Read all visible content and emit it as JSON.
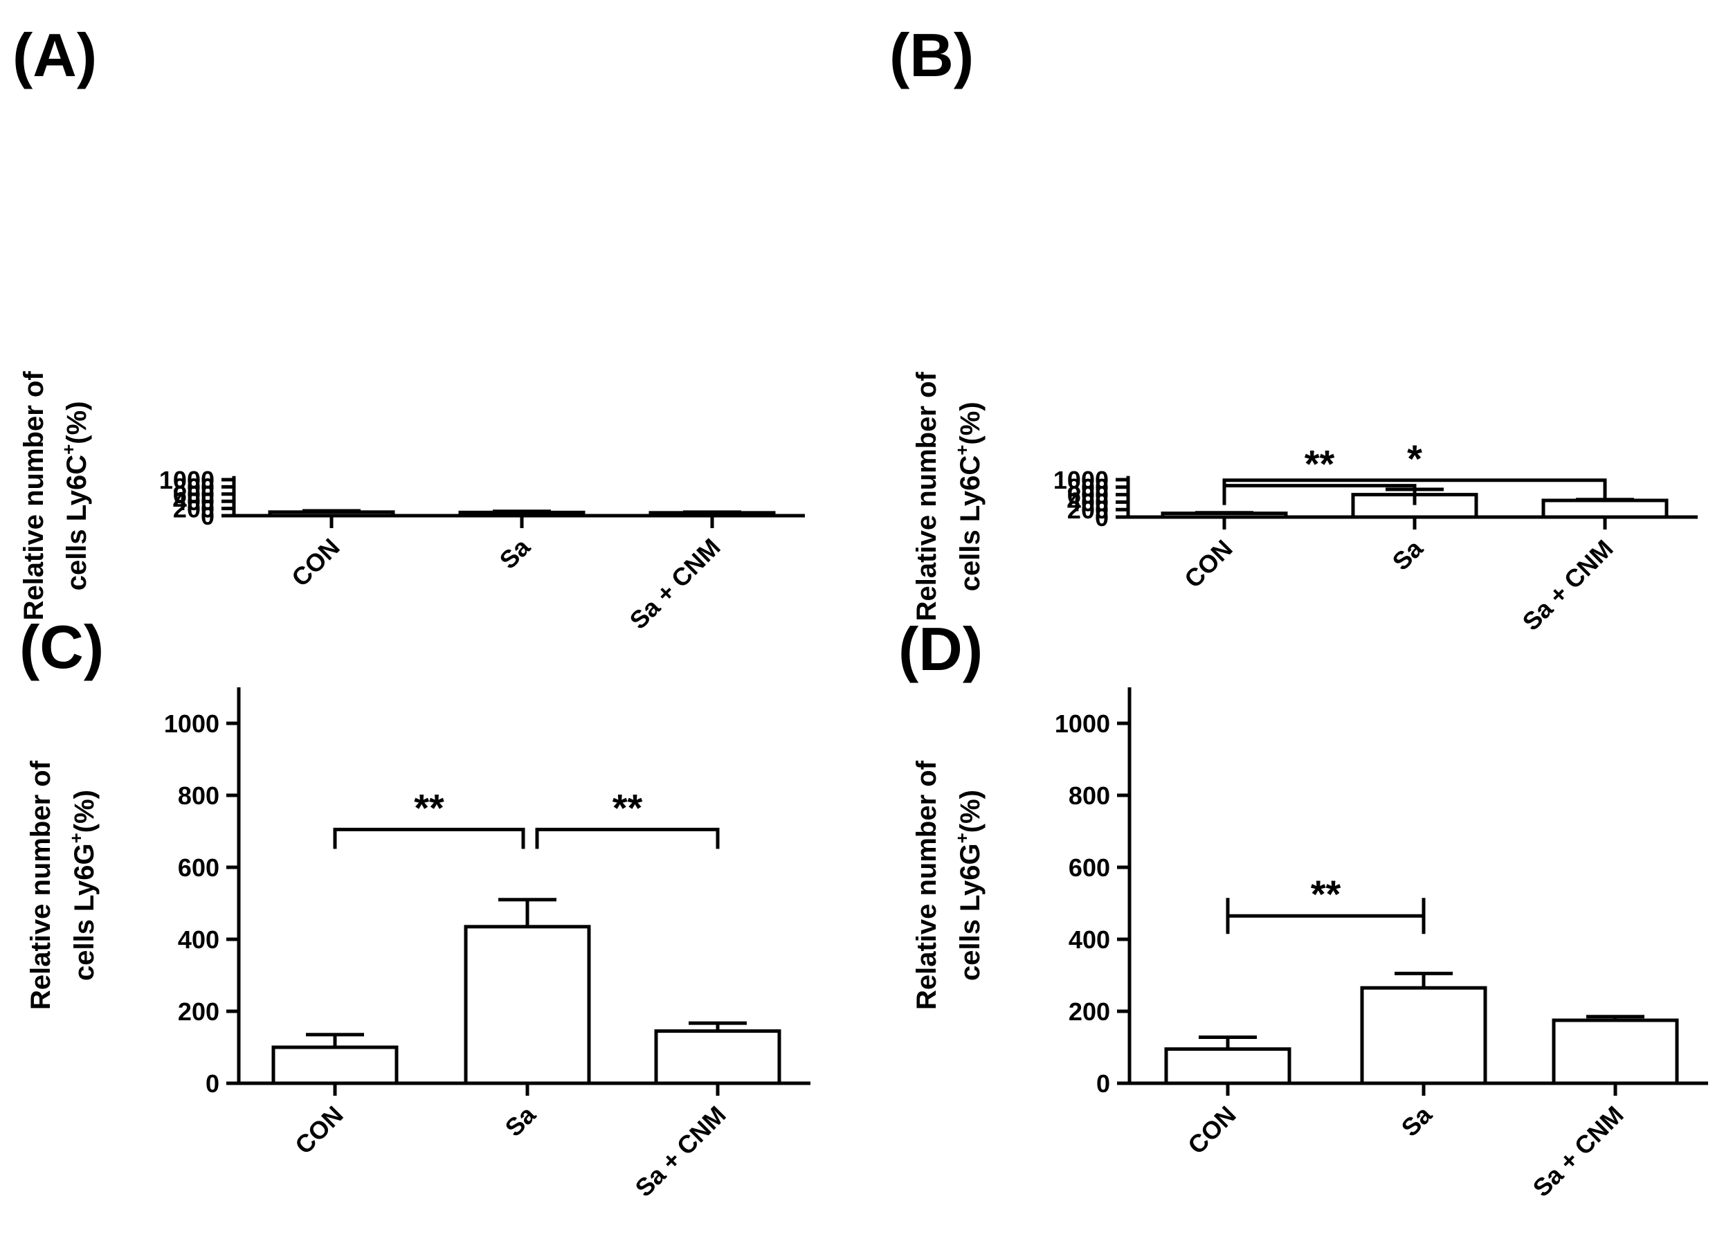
{
  "chart_data": [
    {
      "panel": "(A)",
      "type": "bar",
      "categories": [
        "CON",
        "Sa",
        "Sa + CNM"
      ],
      "values": [
        100,
        90,
        80
      ],
      "errors": [
        35,
        30,
        18
      ],
      "ylabel_line1": "Relative number of",
      "ylabel_line2_pre": "cells Ly6C",
      "ylabel_sup": "+",
      "ylabel_post": "(%)",
      "ylim": [
        0,
        1100
      ],
      "yticks": [
        "0",
        "200",
        "400",
        "600",
        "800",
        "1000"
      ],
      "significance": []
    },
    {
      "panel": "(B)",
      "type": "bar",
      "categories": [
        "CON",
        "Sa",
        "Sa + CNM"
      ],
      "values": [
        100,
        600,
        445
      ],
      "errors": [
        15,
        140,
        22
      ],
      "ylabel_line1": "Relative number of",
      "ylabel_line2_pre": "cells Ly6C",
      "ylabel_sup": "+",
      "ylabel_post": "(%)",
      "ylim": [
        0,
        1100
      ],
      "yticks": [
        "0",
        "200",
        "400",
        "600",
        "800",
        "1000"
      ],
      "significance": [
        {
          "from": 0,
          "to": 1,
          "level": 840,
          "label": "**"
        },
        {
          "from": 0,
          "to": 2,
          "level": 985,
          "label": "*"
        }
      ]
    },
    {
      "panel": "(C)",
      "type": "bar",
      "categories": [
        "CON",
        "Sa",
        "Sa + CNM"
      ],
      "values": [
        100,
        435,
        145
      ],
      "errors": [
        35,
        75,
        22
      ],
      "ylabel_line1": "Relative number of",
      "ylabel_line2_pre": "cells Ly6G",
      "ylabel_sup": "+",
      "ylabel_post": "(%)",
      "ylim": [
        0,
        1100
      ],
      "yticks": [
        "0",
        "200",
        "400",
        "600",
        "800",
        "1000"
      ],
      "significance": [
        {
          "from": 0,
          "to": 1,
          "level": 705,
          "label": "**"
        },
        {
          "from": 1,
          "to": 2,
          "level": 705,
          "label": "**"
        }
      ]
    },
    {
      "panel": "(D)",
      "type": "bar",
      "categories": [
        "CON",
        "Sa",
        "Sa + CNM"
      ],
      "values": [
        95,
        265,
        175
      ],
      "errors": [
        33,
        40,
        10
      ],
      "ylabel_line1": "Relative number of",
      "ylabel_line2_pre": "cells Ly6G",
      "ylabel_sup": "+",
      "ylabel_post": "(%)",
      "ylim": [
        0,
        1100
      ],
      "yticks": [
        "0",
        "200",
        "400",
        "600",
        "800",
        "1000"
      ],
      "significance": [
        {
          "from": 0,
          "to": 1,
          "level": 465,
          "label": "**",
          "style": "flat"
        }
      ]
    }
  ]
}
